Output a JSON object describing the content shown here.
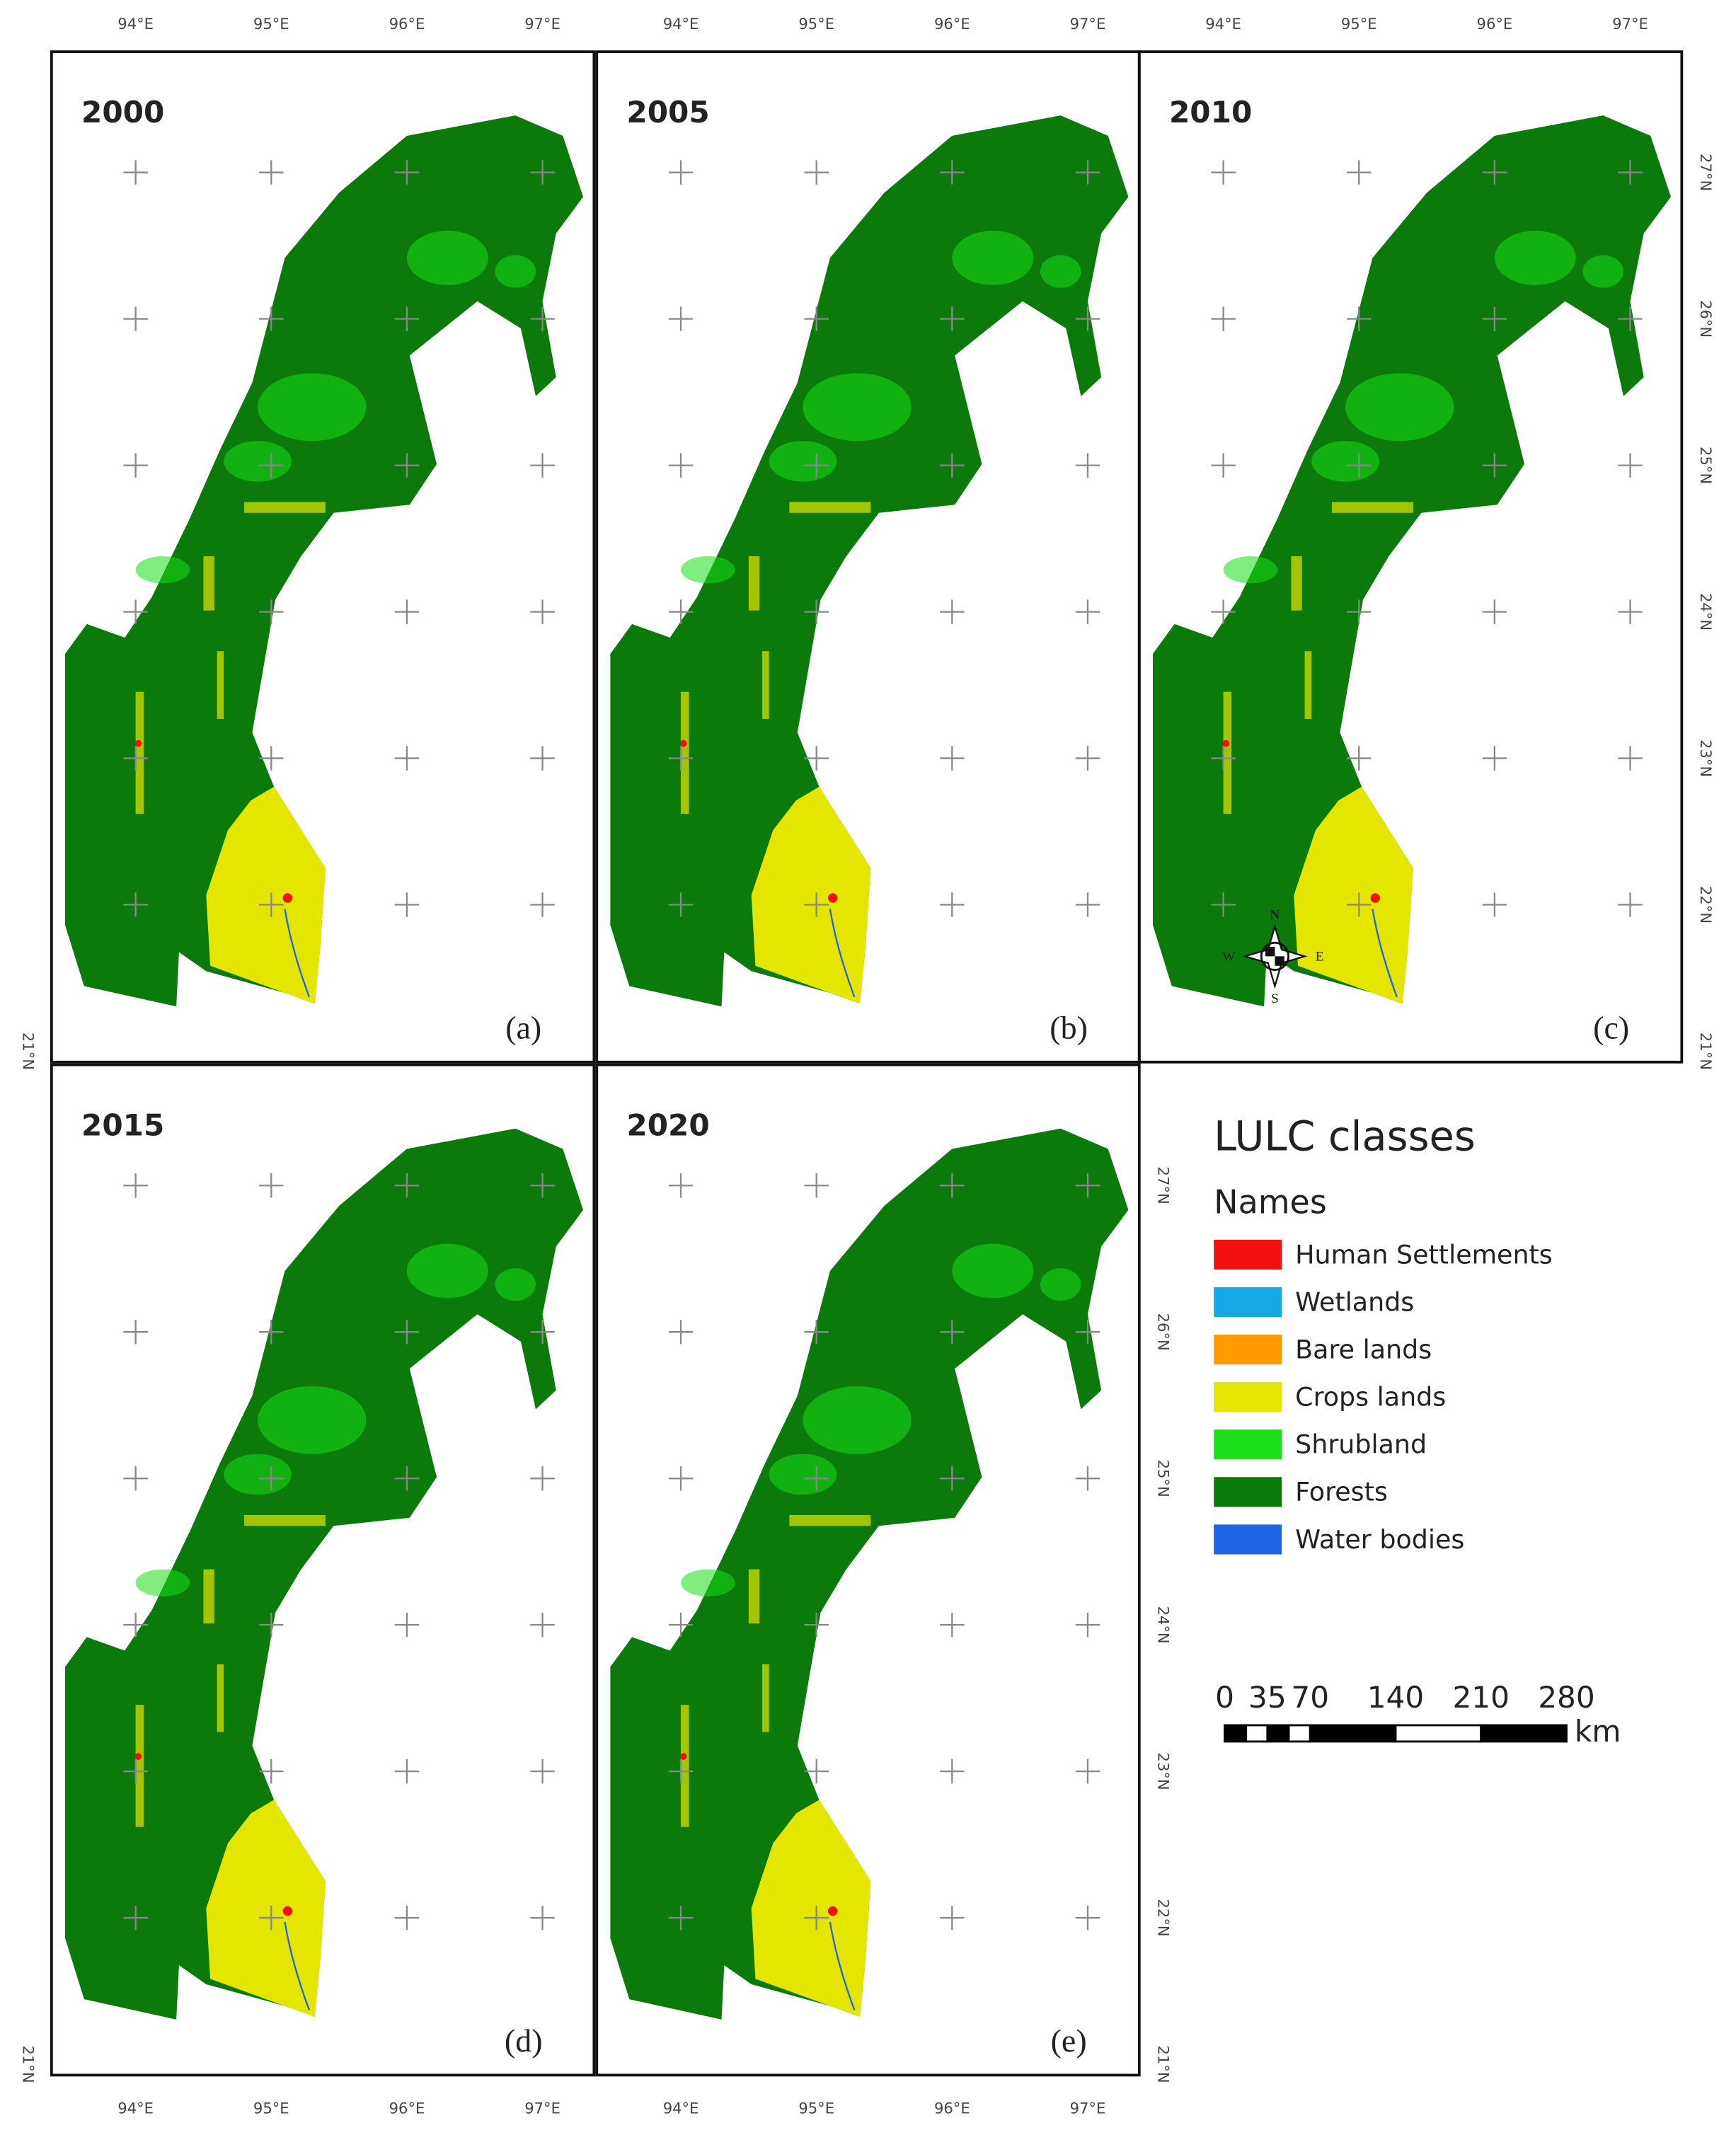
{
  "panels": [
    {
      "year": "2000",
      "label": "(a)"
    },
    {
      "year": "2005",
      "label": "(b)"
    },
    {
      "year": "2010",
      "label": "(c)"
    },
    {
      "year": "2015",
      "label": "(d)"
    },
    {
      "year": "2020",
      "label": "(e)"
    }
  ],
  "longitudes": [
    "94°E",
    "95°E",
    "96°E",
    "97°E"
  ],
  "latitudes": [
    "21°N",
    "22°N",
    "23°N",
    "24°N",
    "25°N",
    "26°N",
    "27°N"
  ],
  "legend": {
    "title": "LULC classes",
    "subtitle": "Names",
    "items": [
      {
        "name": "Human Settlements",
        "color": "#f20f0f"
      },
      {
        "name": "Wetlands",
        "color": "#14a9e6"
      },
      {
        "name": "Bare lands",
        "color": "#ff9a00"
      },
      {
        "name": "Crops lands",
        "color": "#e4e600"
      },
      {
        "name": "Shrubland",
        "color": "#1adf1a"
      },
      {
        "name": "Forests",
        "color": "#0b7a0b"
      },
      {
        "name": "Water bodies",
        "color": "#1f63e6"
      }
    ]
  },
  "scale_bar": {
    "ticks": [
      0,
      35,
      70,
      140,
      210,
      280
    ],
    "unit": "km"
  },
  "compass": {
    "north": "N",
    "south": "S",
    "east": "E",
    "west": "W"
  }
}
